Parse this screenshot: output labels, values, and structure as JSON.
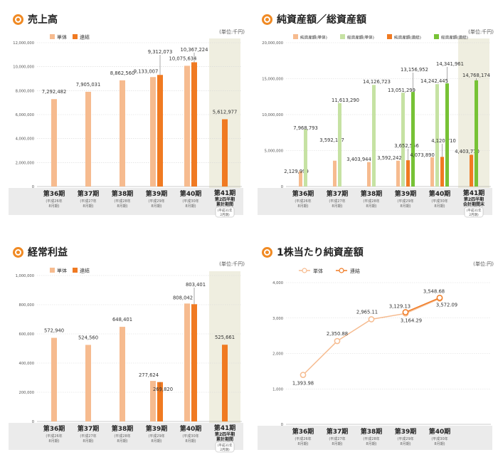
{
  "unit_label": "(単位:千円)",
  "unit_label_yen": "(単位:円)",
  "colors": {
    "single": "#f6bb8f",
    "consolidated": "#f07a22",
    "single_total": "#c6e2a3",
    "consolidated_total": "#77c236",
    "accent": "#f08a24",
    "highlight_bg": "#efeee0",
    "label_bg": "#ebebeb"
  },
  "periods": [
    {
      "label": "第36期",
      "sub1": "(平成26年",
      "sub2": "8月期)"
    },
    {
      "label": "第37期",
      "sub1": "(平成27年",
      "sub2": "8月期)"
    },
    {
      "label": "第38期",
      "sub1": "(平成28年",
      "sub2": "8月期)"
    },
    {
      "label": "第39期",
      "sub1": "(平成29年",
      "sub2": "8月期)"
    },
    {
      "label": "第40期",
      "sub1": "(平成30年",
      "sub2": "8月期)"
    }
  ],
  "chart_data": [
    {
      "type": "bar",
      "title": "売上高",
      "legend": [
        "単体",
        "連結"
      ],
      "categories": [
        "第36期",
        "第37期",
        "第38期",
        "第39期",
        "第40期",
        "第41期"
      ],
      "ylim": [
        0,
        12000000
      ],
      "yticks": [
        "12,000,000",
        "10,000,000",
        "8,000,000",
        "6,000,000",
        "4,000,000",
        "2,000,000",
        "0"
      ],
      "series": [
        {
          "name": "単体",
          "values": [
            7292482,
            7905031,
            8862560,
            9133007,
            10075634,
            null
          ],
          "labels": [
            "7,292,482",
            "7,905,031",
            "8,862,560",
            "9,133,007",
            "10,075,634",
            ""
          ]
        },
        {
          "name": "連結",
          "values": [
            null,
            null,
            null,
            9312073,
            10367224,
            5612977
          ],
          "labels": [
            "",
            "",
            "",
            "9,312,073",
            "10,367,224",
            "5,612,977"
          ]
        }
      ],
      "last_category": {
        "label": "第41期",
        "sub": "第2四半期",
        "sub2": "累計期間",
        "note1": "(平成31年",
        "note2": "2月期)"
      }
    },
    {
      "type": "bar",
      "title": "純資産額／総資産額",
      "legend": [
        "純資産額(単体)",
        "総資産額(単体)",
        "純資産額(連結)",
        "総資産額(連結)"
      ],
      "categories": [
        "第36期",
        "第37期",
        "第38期",
        "第39期",
        "第40期",
        "第41期"
      ],
      "ylim": [
        0,
        20000000
      ],
      "yticks": [
        "20,000,000",
        "15,000,000",
        "10,000,000",
        "5,000,000",
        "0"
      ],
      "series": [
        {
          "name": "純資産額(単体)",
          "values": [
            2129999,
            3592147,
            3403944,
            3592242,
            4073890,
            null
          ],
          "labels": [
            "2,129,999",
            "3,592,147",
            "3,403,944",
            "3,592,242",
            "4,073,890",
            ""
          ]
        },
        {
          "name": "総資産額(単体)",
          "values": [
            7968793,
            11613290,
            14126723,
            13051299,
            14242445,
            null
          ],
          "labels": [
            "7,968,793",
            "11,613,290",
            "14,126,723",
            "13,051,299",
            "14,242,445",
            ""
          ]
        },
        {
          "name": "純資産額(連結)",
          "values": [
            null,
            null,
            null,
            3652556,
            4120710,
            4403770
          ],
          "labels": [
            "",
            "",
            "",
            "3,652,556",
            "4,120,710",
            "4,403,770"
          ]
        },
        {
          "name": "総資産額(連結)",
          "values": [
            null,
            null,
            null,
            13156952,
            14341961,
            14768174
          ],
          "labels": [
            "",
            "",
            "",
            "13,156,952",
            "14,341,961",
            "14,768,174"
          ]
        }
      ],
      "last_category": {
        "label": "第41期",
        "sub": "第2四半期",
        "sub2": "会計期間末",
        "note1": "(平成31年",
        "note2": "2月期)"
      }
    },
    {
      "type": "bar",
      "title": "経常利益",
      "legend": [
        "単体",
        "連結"
      ],
      "categories": [
        "第36期",
        "第37期",
        "第38期",
        "第39期",
        "第40期",
        "第41期"
      ],
      "ylim": [
        0,
        1000000
      ],
      "yticks": [
        "1,000,000",
        "800,000",
        "600,000",
        "400,000",
        "200,000",
        "0"
      ],
      "series": [
        {
          "name": "単体",
          "values": [
            572940,
            524560,
            648401,
            277624,
            808042,
            null
          ],
          "labels": [
            "572,940",
            "524,560",
            "648,401",
            "277,624",
            "808,042",
            ""
          ]
        },
        {
          "name": "連結",
          "values": [
            null,
            null,
            null,
            269820,
            803401,
            525661
          ],
          "labels": [
            "",
            "",
            "",
            "269,820",
            "803,401",
            "525,661"
          ]
        }
      ],
      "last_category": {
        "label": "第41期",
        "sub": "第2四半期",
        "sub2": "累計期間",
        "note1": "(平成31年",
        "note2": "2月期)"
      }
    },
    {
      "type": "line",
      "title": "1株当たり純資産額",
      "legend": [
        "単体",
        "連結"
      ],
      "categories": [
        "第36期",
        "第37期",
        "第38期",
        "第39期",
        "第40期"
      ],
      "ylim": [
        0,
        4000
      ],
      "yticks": [
        "4,000",
        "3,000",
        "2,000",
        "1,000",
        "0"
      ],
      "series": [
        {
          "name": "単体",
          "values": [
            1393.98,
            2350.88,
            2965.11,
            3129.13,
            3548.68
          ],
          "labels": [
            "1,393.98",
            "2,350.88",
            "2,965.11",
            "3,129.13",
            "3,548.68"
          ]
        },
        {
          "name": "連結",
          "values": [
            null,
            null,
            null,
            3164.29,
            3572.09
          ],
          "labels": [
            "",
            "",
            "",
            "3,164.29",
            "3,572.09"
          ]
        }
      ]
    }
  ]
}
